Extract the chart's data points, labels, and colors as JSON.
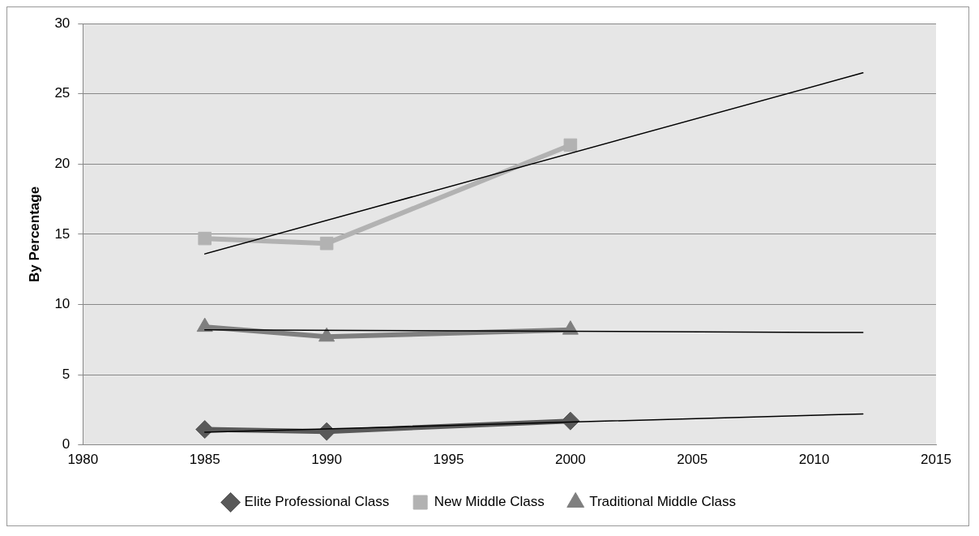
{
  "chart_data": {
    "type": "line",
    "ylabel": "By Percentage",
    "xlim": [
      1980,
      2015
    ],
    "xticks": [
      1980,
      1985,
      1990,
      1995,
      2000,
      2005,
      2010,
      2015
    ],
    "ylim": [
      0,
      30
    ],
    "yticks": [
      0,
      5,
      10,
      15,
      20,
      25,
      30
    ],
    "grid": "y",
    "legend": "bottom",
    "line_style": "solid",
    "series": [
      {
        "name": "Elite Professional Class",
        "color": "#595959",
        "x": [
          1985,
          1990,
          2000
        ],
        "values": [
          1.1,
          0.95,
          1.7
        ],
        "marker": "diamond"
      },
      {
        "name": "New Middle Class",
        "color": "#b2b2b2",
        "x": [
          1985,
          1990,
          2000
        ],
        "values": [
          14.7,
          14.35,
          21.35
        ],
        "marker": "square"
      },
      {
        "name": "Traditional Middle Class",
        "color": "#7f7f7f",
        "x": [
          1985,
          1990,
          2000
        ],
        "values": [
          8.4,
          7.7,
          8.2
        ],
        "marker": "triangle"
      },
      {
        "color": "#000000",
        "x": [
          1985,
          2012
        ],
        "values": [
          0.9,
          2.2
        ],
        "marker": "none"
      },
      {
        "color": "#000000",
        "x": [
          1985,
          2012
        ],
        "values": [
          13.6,
          26.5
        ],
        "marker": "none"
      },
      {
        "color": "#000000",
        "x": [
          1985,
          2012
        ],
        "values": [
          8.2,
          8.0
        ],
        "marker": "none"
      }
    ]
  }
}
